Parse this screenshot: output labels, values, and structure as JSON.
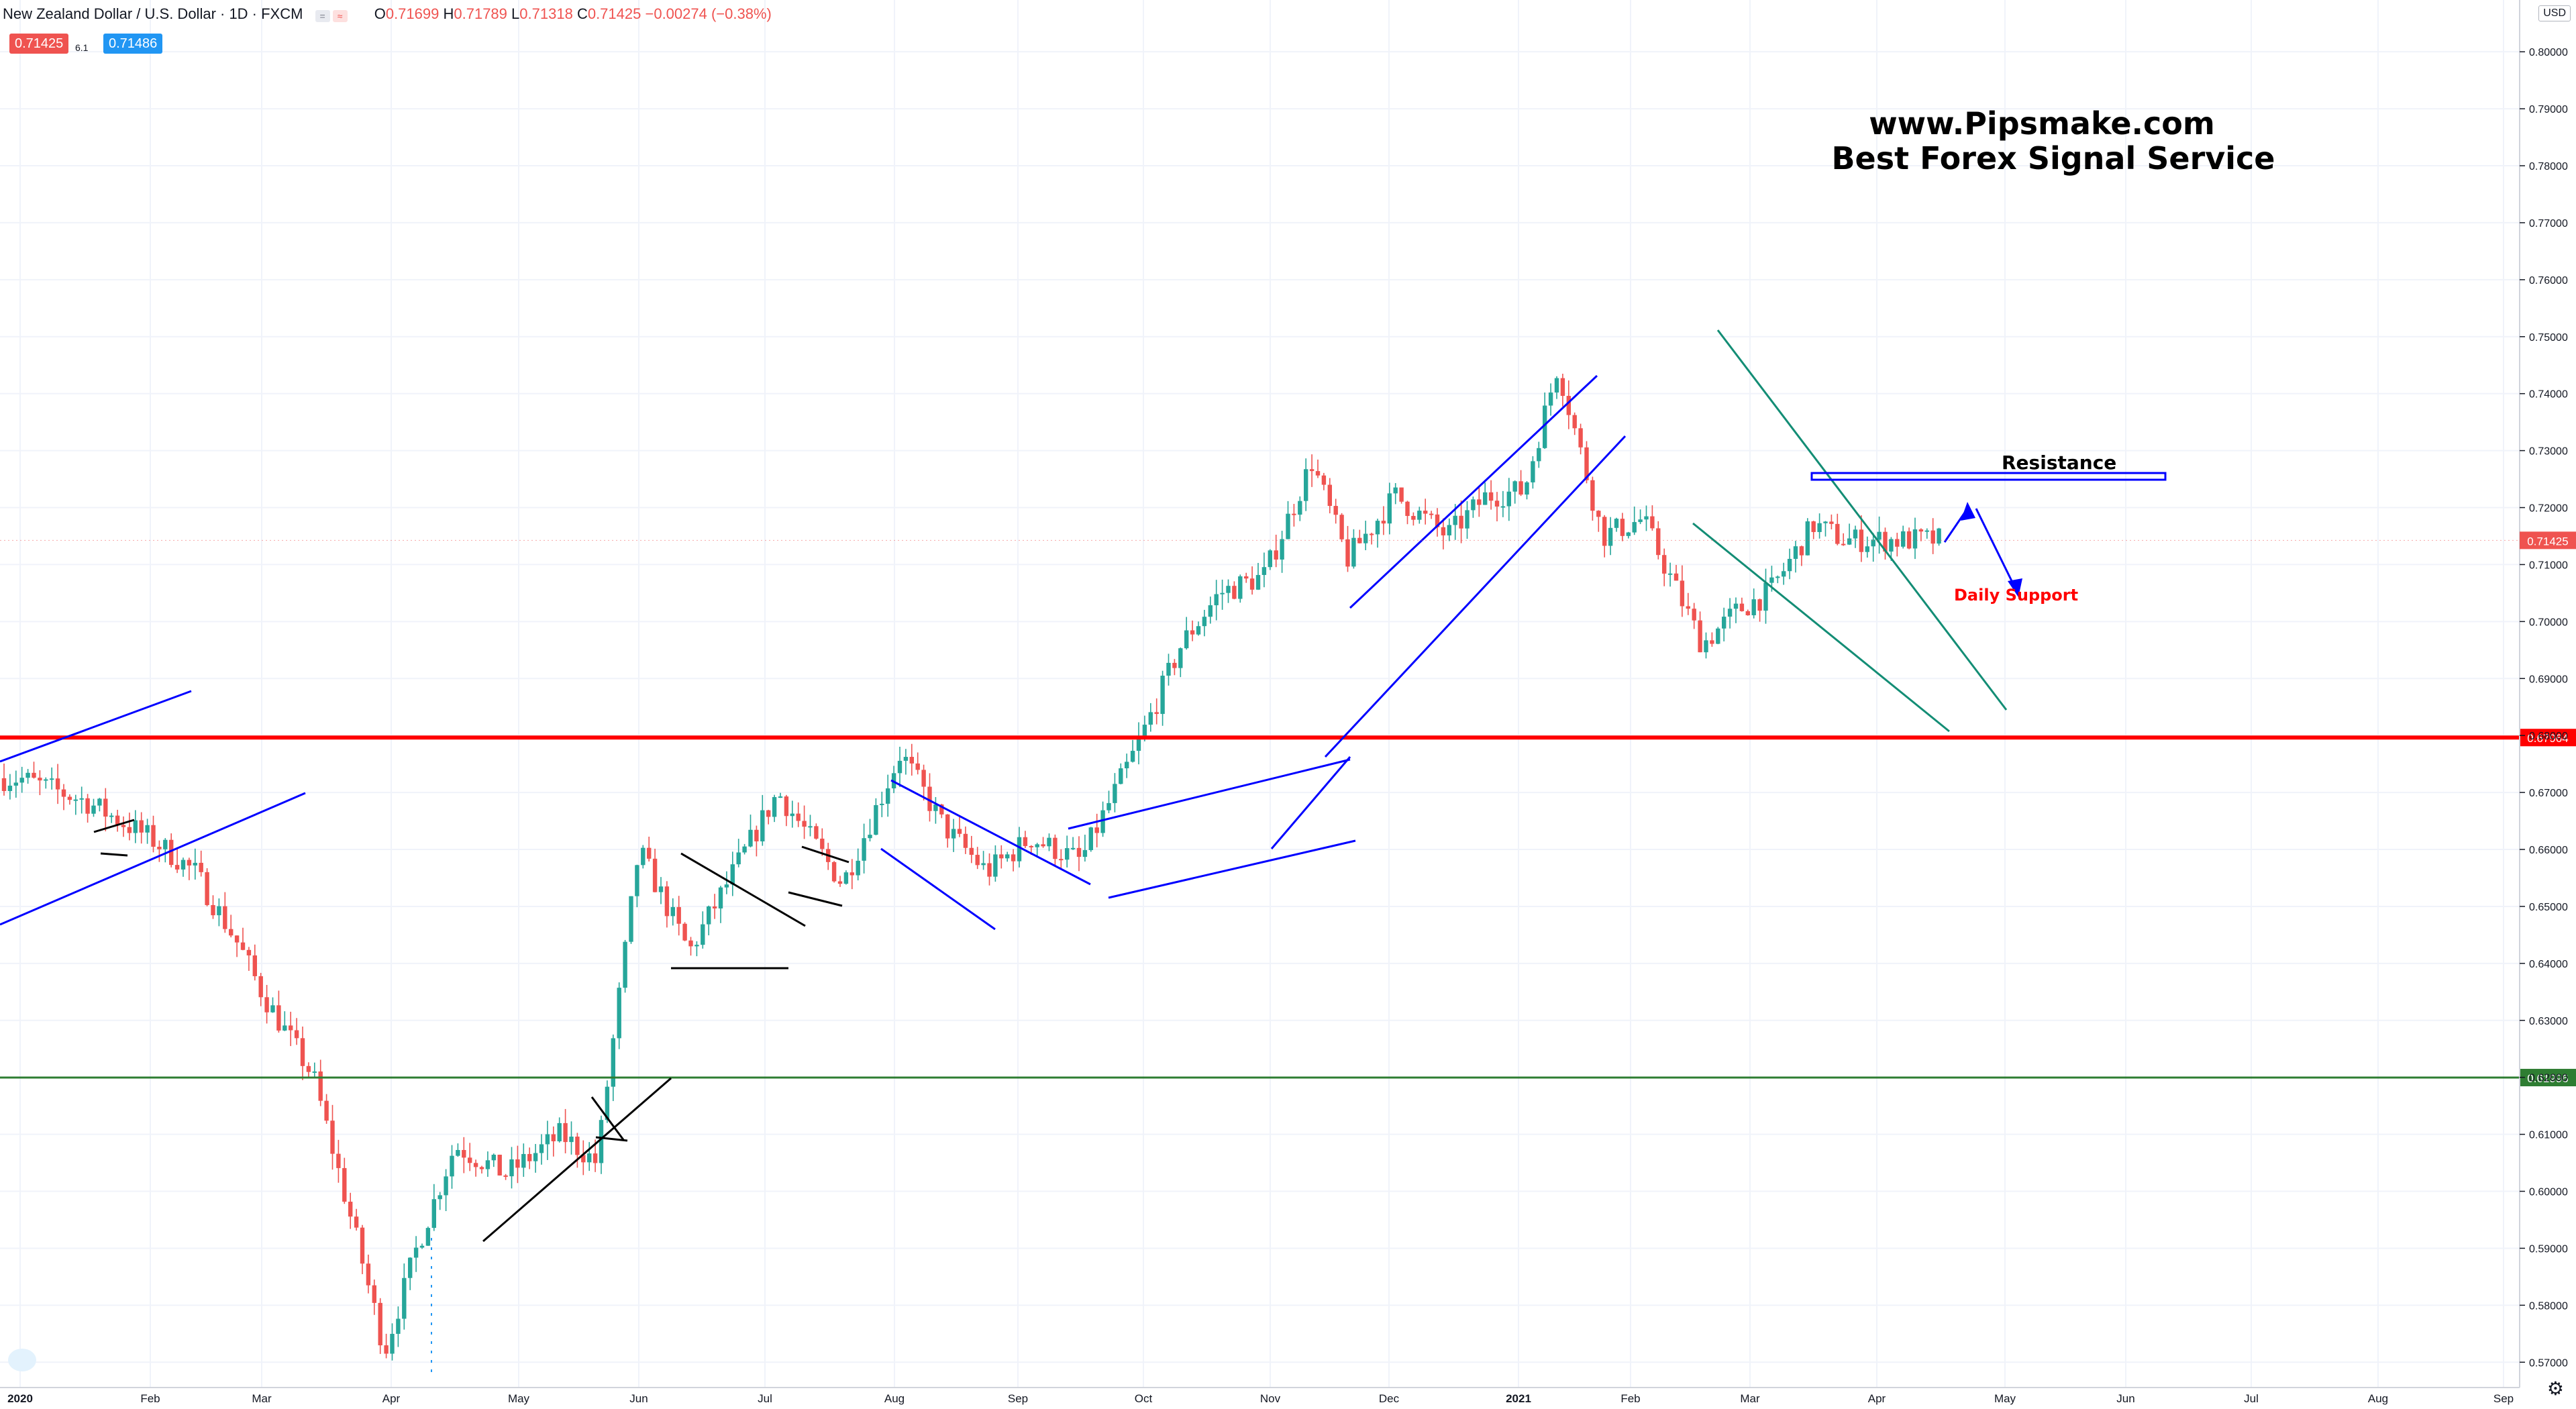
{
  "header": {
    "title": "New Zealand Dollar / U.S. Dollar · 1D · FXCM",
    "ohlc_o": "0.71699",
    "ohlc_h": "0.71789",
    "ohlc_l": "0.71318",
    "ohlc_c": "0.71425",
    "ohlc_chg": "−0.00274 (−0.38%)",
    "o_label": "O",
    "h_label": "H",
    "l_label": "L",
    "c_label": "C",
    "bid": "0.71425",
    "spread": "6.1",
    "ask": "0.71486"
  },
  "currency_label": "USD",
  "colors": {
    "up": "#26a69a",
    "down": "#ef5350",
    "trend": "#0000ff",
    "channel": "#138d75",
    "support_red": "#ff0000",
    "support_green": "#2e7d32",
    "pattern": "#000000"
  },
  "chart_data": {
    "type": "candlestick",
    "symbol": "NZDUSD",
    "timeframe": "1D",
    "x_ticks": [
      "2020",
      "Feb",
      "Mar",
      "Apr",
      "May",
      "Jun",
      "Jul",
      "Aug",
      "Sep",
      "Oct",
      "Nov",
      "Dec",
      "2021",
      "Feb",
      "Mar",
      "Apr",
      "May",
      "Jun",
      "Jul",
      "Aug",
      "Sep"
    ],
    "y_ticks": [
      "0.80000",
      "0.79000",
      "0.78000",
      "0.77000",
      "0.76000",
      "0.75000",
      "0.74000",
      "0.73000",
      "0.72000",
      "0.71000",
      "0.70000",
      "0.69000",
      "0.68000",
      "0.67000",
      "0.66000",
      "0.65000",
      "0.64000",
      "0.63000",
      "0.62000",
      "0.61000",
      "0.60000",
      "0.59000",
      "0.58000",
      "0.57000"
    ],
    "ylim": [
      0.5665,
      0.8085
    ],
    "current_price": "0.71425",
    "horizontal_levels": [
      {
        "value": 0.67964,
        "label": "0.67964",
        "color": "#ff0000"
      },
      {
        "value": 0.61996,
        "label": "0.61996",
        "color": "#2e7d32"
      }
    ],
    "close_anchors": [
      [
        0,
        0.6725
      ],
      [
        0.5,
        0.6685
      ],
      [
        1,
        0.662
      ],
      [
        1.4,
        0.656
      ],
      [
        1.8,
        0.643
      ],
      [
        2.05,
        0.633
      ],
      [
        2.4,
        0.62
      ],
      [
        2.75,
        0.59
      ],
      [
        2.95,
        0.572
      ],
      [
        3.2,
        0.59
      ],
      [
        3.5,
        0.608
      ],
      [
        3.9,
        0.603
      ],
      [
        4.35,
        0.61
      ],
      [
        4.65,
        0.605
      ],
      [
        5,
        0.66
      ],
      [
        5.4,
        0.642
      ],
      [
        5.75,
        0.656
      ],
      [
        6.1,
        0.67
      ],
      [
        6.6,
        0.654
      ],
      [
        7.05,
        0.677
      ],
      [
        7.4,
        0.664
      ],
      [
        7.75,
        0.656
      ],
      [
        8.1,
        0.662
      ],
      [
        8.5,
        0.658
      ],
      [
        8.95,
        0.678
      ],
      [
        9.3,
        0.696
      ],
      [
        9.6,
        0.705
      ],
      [
        9.95,
        0.708
      ],
      [
        10.35,
        0.728
      ],
      [
        10.65,
        0.711
      ],
      [
        11.05,
        0.722
      ],
      [
        11.45,
        0.715
      ],
      [
        11.75,
        0.722
      ],
      [
        12.05,
        0.723
      ],
      [
        12.35,
        0.745
      ],
      [
        12.75,
        0.715
      ],
      [
        13.1,
        0.718
      ],
      [
        13.6,
        0.696
      ],
      [
        13.9,
        0.702
      ],
      [
        14.15,
        0.705
      ],
      [
        14.5,
        0.717
      ],
      [
        14.75,
        0.7143
      ]
    ],
    "annotations": [
      {
        "text": "Resistance",
        "value": 0.7248,
        "color": "#000000"
      },
      {
        "text": "Daily Support",
        "value": 0.704,
        "color": "#ff0000"
      }
    ],
    "watermark": [
      "www.Pipsmake.com",
      "Best Forex Signal Service"
    ]
  }
}
